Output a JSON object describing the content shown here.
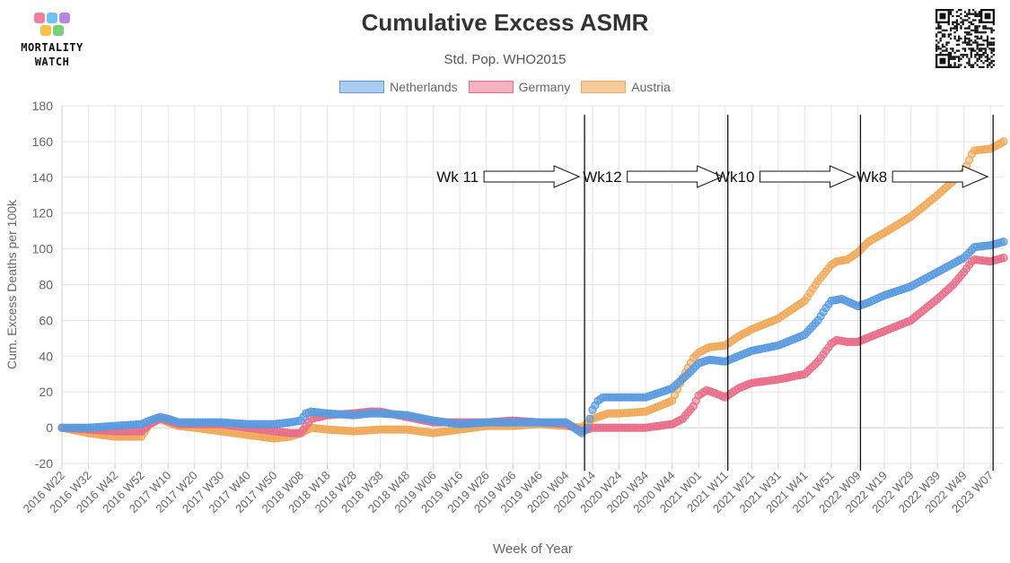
{
  "header": {
    "title": "Cumulative Excess ASMR",
    "subtitle": "Std. Pop. WHO2015",
    "logo_line1": "MORTALITY",
    "logo_line2": "WATCH"
  },
  "colors": {
    "netherlands": "#5a9be0",
    "germany": "#e86d88",
    "austria": "#f0a95a",
    "grid": "#e6e6e6",
    "axis_text": "#666666"
  },
  "legend": [
    {
      "label": "Netherlands",
      "fill": "#a8cdf0",
      "stroke": "#5a9be0"
    },
    {
      "label": "Germany",
      "fill": "#f5b3c1",
      "stroke": "#e86d88"
    },
    {
      "label": "Austria",
      "fill": "#f8cc9a",
      "stroke": "#f0a95a"
    }
  ],
  "chart_data": {
    "type": "line",
    "title": "Cumulative Excess ASMR",
    "subtitle": "Std. Pop. WHO2015",
    "xlabel": "Week of Year",
    "ylabel": "Cum. Excess Deaths per 100k",
    "ylim": [
      -20,
      180
    ],
    "yticks": [
      -20,
      0,
      20,
      40,
      60,
      80,
      100,
      120,
      140,
      160,
      180
    ],
    "grid": true,
    "legend_position": "top",
    "x_start": "2016 W22",
    "x_end": "2023 W12",
    "x_tick_labels": [
      "2016 W22",
      "2016 W32",
      "2016 W42",
      "2016 W52",
      "2017 W10",
      "2017 W20",
      "2017 W30",
      "2017 W40",
      "2017 W50",
      "2018 W08",
      "2018 W18",
      "2018 W28",
      "2018 W38",
      "2018 W48",
      "2019 W06",
      "2019 W16",
      "2019 W26",
      "2019 W36",
      "2019 W46",
      "2020 W04",
      "2020 W14",
      "2020 W24",
      "2020 W34",
      "2020 W44",
      "2021 W01",
      "2021 W11",
      "2021 W21",
      "2021 W31",
      "2021 W41",
      "2021 W51",
      "2022 W09",
      "2022 W19",
      "2022 W29",
      "2022 W39",
      "2022 W49",
      "2023 W07"
    ],
    "series": [
      {
        "name": "Netherlands",
        "points": [
          [
            "2016 W22",
            0
          ],
          [
            "2016 W32",
            0
          ],
          [
            "2016 W42",
            1
          ],
          [
            "2016 W52",
            2
          ],
          [
            "2017 W03",
            4
          ],
          [
            "2017 W07",
            6
          ],
          [
            "2017 W10",
            5
          ],
          [
            "2017 W14",
            3
          ],
          [
            "2017 W20",
            3
          ],
          [
            "2017 W30",
            3
          ],
          [
            "2017 W40",
            2
          ],
          [
            "2017 W50",
            2
          ],
          [
            "2018 W04",
            3
          ],
          [
            "2018 W08",
            4
          ],
          [
            "2018 W10",
            8
          ],
          [
            "2018 W12",
            9
          ],
          [
            "2018 W18",
            8
          ],
          [
            "2018 W28",
            7
          ],
          [
            "2018 W34",
            8
          ],
          [
            "2018 W38",
            8
          ],
          [
            "2018 W48",
            7
          ],
          [
            "2019 W06",
            4
          ],
          [
            "2019 W16",
            2
          ],
          [
            "2019 W26",
            3
          ],
          [
            "2019 W36",
            3
          ],
          [
            "2019 W46",
            3
          ],
          [
            "2020 W04",
            3
          ],
          [
            "2020 W10",
            -3
          ],
          [
            "2020 W12",
            0
          ],
          [
            "2020 W14",
            10
          ],
          [
            "2020 W16",
            15
          ],
          [
            "2020 W18",
            17
          ],
          [
            "2020 W24",
            17
          ],
          [
            "2020 W34",
            17
          ],
          [
            "2020 W38",
            19
          ],
          [
            "2020 W44",
            22
          ],
          [
            "2020 W50",
            30
          ],
          [
            "2021 W01",
            36
          ],
          [
            "2021 W05",
            38
          ],
          [
            "2021 W11",
            37
          ],
          [
            "2021 W21",
            43
          ],
          [
            "2021 W31",
            46
          ],
          [
            "2021 W41",
            52
          ],
          [
            "2021 W46",
            60
          ],
          [
            "2021 W49",
            67
          ],
          [
            "2021 W51",
            71
          ],
          [
            "2022 W03",
            72
          ],
          [
            "2022 W09",
            68
          ],
          [
            "2022 W13",
            70
          ],
          [
            "2022 W19",
            74
          ],
          [
            "2022 W29",
            79
          ],
          [
            "2022 W39",
            87
          ],
          [
            "2022 W49",
            95
          ],
          [
            "2023 W01",
            101
          ],
          [
            "2023 W07",
            102
          ],
          [
            "2023 W12",
            104
          ]
        ]
      },
      {
        "name": "Germany",
        "points": [
          [
            "2016 W22",
            0
          ],
          [
            "2016 W32",
            -1
          ],
          [
            "2016 W42",
            -2
          ],
          [
            "2016 W52",
            -2
          ],
          [
            "2017 W03",
            2
          ],
          [
            "2017 W07",
            5
          ],
          [
            "2017 W10",
            4
          ],
          [
            "2017 W14",
            2
          ],
          [
            "2017 W20",
            2
          ],
          [
            "2017 W30",
            2
          ],
          [
            "2017 W40",
            0
          ],
          [
            "2017 W50",
            -2
          ],
          [
            "2018 W04",
            -3
          ],
          [
            "2018 W08",
            -3
          ],
          [
            "2018 W12",
            5
          ],
          [
            "2018 W18",
            7
          ],
          [
            "2018 W28",
            8
          ],
          [
            "2018 W34",
            9
          ],
          [
            "2018 W38",
            9
          ],
          [
            "2018 W48",
            6
          ],
          [
            "2019 W06",
            3
          ],
          [
            "2019 W16",
            3
          ],
          [
            "2019 W26",
            3
          ],
          [
            "2019 W36",
            4
          ],
          [
            "2019 W46",
            3
          ],
          [
            "2020 W04",
            2
          ],
          [
            "2020 W10",
            -2
          ],
          [
            "2020 W14",
            0
          ],
          [
            "2020 W24",
            0
          ],
          [
            "2020 W34",
            0
          ],
          [
            "2020 W44",
            2
          ],
          [
            "2020 W48",
            5
          ],
          [
            "2020 W52",
            12
          ],
          [
            "2021 W01",
            18
          ],
          [
            "2021 W04",
            21
          ],
          [
            "2021 W06",
            20
          ],
          [
            "2021 W11",
            17
          ],
          [
            "2021 W16",
            22
          ],
          [
            "2021 W21",
            25
          ],
          [
            "2021 W31",
            27
          ],
          [
            "2021 W41",
            30
          ],
          [
            "2021 W46",
            37
          ],
          [
            "2021 W51",
            47
          ],
          [
            "2022 W01",
            49
          ],
          [
            "2022 W05",
            48
          ],
          [
            "2022 W09",
            48
          ],
          [
            "2022 W19",
            54
          ],
          [
            "2022 W29",
            60
          ],
          [
            "2022 W39",
            72
          ],
          [
            "2022 W45",
            80
          ],
          [
            "2022 W49",
            87
          ],
          [
            "2022 W52",
            93
          ],
          [
            "2023 W01",
            94
          ],
          [
            "2023 W07",
            93
          ],
          [
            "2023 W12",
            95
          ]
        ]
      },
      {
        "name": "Austria",
        "points": [
          [
            "2016 W22",
            0
          ],
          [
            "2016 W32",
            -3
          ],
          [
            "2016 W42",
            -5
          ],
          [
            "2016 W52",
            -5
          ],
          [
            "2017 W03",
            2
          ],
          [
            "2017 W07",
            5
          ],
          [
            "2017 W10",
            3
          ],
          [
            "2017 W14",
            1
          ],
          [
            "2017 W20",
            0
          ],
          [
            "2017 W30",
            -2
          ],
          [
            "2017 W40",
            -4
          ],
          [
            "2017 W50",
            -6
          ],
          [
            "2018 W04",
            -5
          ],
          [
            "2018 W08",
            -3
          ],
          [
            "2018 W12",
            0
          ],
          [
            "2018 W18",
            -1
          ],
          [
            "2018 W28",
            -2
          ],
          [
            "2018 W38",
            -1
          ],
          [
            "2018 W48",
            -1
          ],
          [
            "2019 W06",
            -3
          ],
          [
            "2019 W16",
            -1
          ],
          [
            "2019 W26",
            1
          ],
          [
            "2019 W36",
            1
          ],
          [
            "2019 W46",
            2
          ],
          [
            "2020 W04",
            1
          ],
          [
            "2020 W10",
            0
          ],
          [
            "2020 W14",
            5
          ],
          [
            "2020 W20",
            8
          ],
          [
            "2020 W24",
            8
          ],
          [
            "2020 W34",
            9
          ],
          [
            "2020 W44",
            15
          ],
          [
            "2020 W48",
            28
          ],
          [
            "2020 W52",
            39
          ],
          [
            "2021 W01",
            42
          ],
          [
            "2021 W05",
            45
          ],
          [
            "2021 W11",
            46
          ],
          [
            "2021 W16",
            51
          ],
          [
            "2021 W21",
            55
          ],
          [
            "2021 W31",
            61
          ],
          [
            "2021 W41",
            71
          ],
          [
            "2021 W46",
            82
          ],
          [
            "2021 W51",
            91
          ],
          [
            "2022 W01",
            93
          ],
          [
            "2022 W05",
            94
          ],
          [
            "2022 W09",
            98
          ],
          [
            "2022 W13",
            104
          ],
          [
            "2022 W19",
            109
          ],
          [
            "2022 W29",
            118
          ],
          [
            "2022 W39",
            130
          ],
          [
            "2022 W45",
            138
          ],
          [
            "2022 W49",
            143
          ],
          [
            "2022 W52",
            153
          ],
          [
            "2023 W01",
            155
          ],
          [
            "2023 W07",
            156
          ],
          [
            "2023 W12",
            160
          ]
        ]
      }
    ],
    "annotations": [
      {
        "label": "Wk 11",
        "vline_at": "2020 W11"
      },
      {
        "label": "Wk12",
        "vline_at": "2021 W12"
      },
      {
        "label": "Wk10",
        "vline_at": "2022 W10"
      },
      {
        "label": "Wk8",
        "vline_at": "2023 W08"
      }
    ]
  }
}
